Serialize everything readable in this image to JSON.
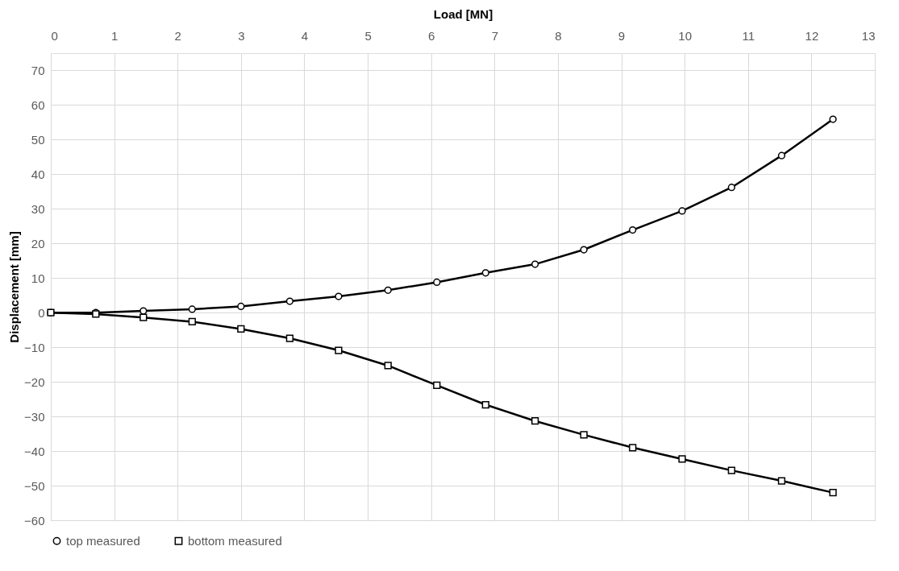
{
  "chart_data": {
    "type": "line",
    "xlabel": "Load [MN]",
    "ylabel": "Displacement [mm]",
    "xlim": [
      0,
      13
    ],
    "xticks": [
      0,
      1,
      2,
      3,
      4,
      5,
      6,
      7,
      8,
      9,
      10,
      11,
      12,
      13
    ],
    "ylim": [
      -60,
      75
    ],
    "yticks": [
      -60,
      -50,
      -40,
      -30,
      -20,
      -10,
      0,
      10,
      20,
      30,
      40,
      50,
      60,
      70
    ],
    "grid": true,
    "legend": "bottom",
    "line_style": "solid",
    "x": [
      0,
      0.71,
      1.46,
      2.23,
      3.0,
      3.77,
      4.54,
      5.32,
      6.09,
      6.86,
      7.64,
      8.41,
      9.18,
      9.96,
      10.74,
      11.53,
      12.34
    ],
    "series": [
      {
        "name": "top measured",
        "color": "#000000",
        "marker": "circle",
        "values": [
          0,
          0,
          0.5,
          1.0,
          1.8,
          3.3,
          4.7,
          6.5,
          8.8,
          11.5,
          14.0,
          18.2,
          23.9,
          29.4,
          36.2,
          45.4,
          55.9
        ]
      },
      {
        "name": "bottom measured",
        "color": "#000000",
        "marker": "square",
        "values": [
          0,
          -0.4,
          -1.4,
          -2.6,
          -4.7,
          -7.4,
          -10.9,
          -15.3,
          -21.0,
          -26.6,
          -31.3,
          -35.3,
          -39.0,
          -42.3,
          -45.6,
          -48.6,
          -52.0
        ]
      }
    ]
  }
}
